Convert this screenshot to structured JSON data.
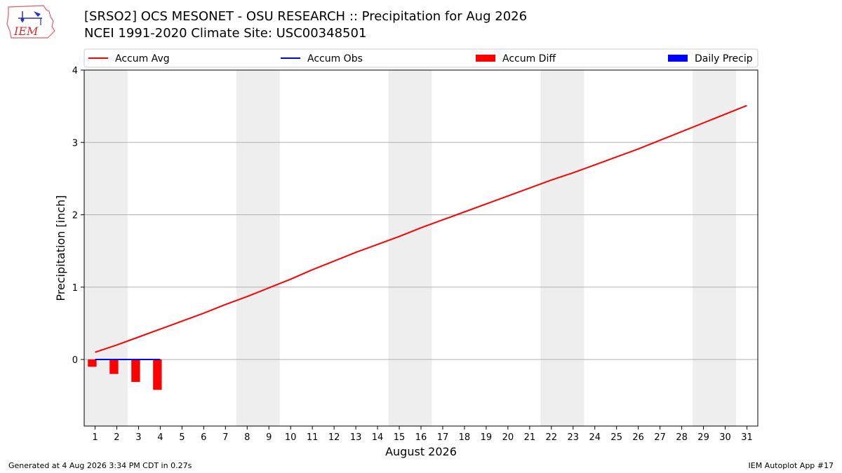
{
  "header": {
    "title_line1": "[SRSO2] OCS MESONET - OSU RESEARCH :: Precipitation for Aug 2026",
    "title_line2": "NCEI 1991-2020 Climate Site: USC00348501",
    "logo_text": "IEM"
  },
  "footer": {
    "left": "Generated at 4 Aug 2026 3:34 PM CDT in 0.27s",
    "right": "IEM Autoplot App #17"
  },
  "chart_data": {
    "type": "line",
    "xlabel": "August 2026",
    "ylabel": "Precipitation [inch]",
    "xlim": [
      0.5,
      31.5
    ],
    "ylim": [
      -0.92,
      4.0
    ],
    "x_ticks": [
      1,
      2,
      3,
      4,
      5,
      6,
      7,
      8,
      9,
      10,
      11,
      12,
      13,
      14,
      15,
      16,
      17,
      18,
      19,
      20,
      21,
      22,
      23,
      24,
      25,
      26,
      27,
      28,
      29,
      30,
      31
    ],
    "y_ticks": [
      0,
      1,
      2,
      3,
      4
    ],
    "grid": "horizontal",
    "weekend_shading": [
      [
        0.5,
        2.5
      ],
      [
        7.5,
        9.5
      ],
      [
        14.5,
        16.5
      ],
      [
        21.5,
        23.5
      ],
      [
        28.5,
        30.5
      ]
    ],
    "legend": {
      "placement": "top",
      "entries": [
        {
          "label": "Accum Avg",
          "kind": "line",
          "color": "#ff0000"
        },
        {
          "label": "Accum Obs",
          "kind": "line",
          "color": "#0000ff"
        },
        {
          "label": "Accum Diff",
          "kind": "bar",
          "color": "#ff0000"
        },
        {
          "label": "Daily Precip",
          "kind": "bar",
          "color": "#0000ff"
        }
      ]
    },
    "series": [
      {
        "name": "Accum Avg",
        "kind": "line",
        "color": "#ff0000",
        "x": [
          1,
          2,
          3,
          4,
          5,
          6,
          7,
          8,
          9,
          10,
          11,
          12,
          13,
          14,
          15,
          16,
          17,
          18,
          19,
          20,
          21,
          22,
          23,
          24,
          25,
          26,
          27,
          28,
          29,
          30,
          31
        ],
        "values": [
          0.1,
          0.2,
          0.31,
          0.42,
          0.53,
          0.64,
          0.76,
          0.87,
          0.99,
          1.11,
          1.24,
          1.36,
          1.48,
          1.59,
          1.7,
          1.82,
          1.93,
          2.04,
          2.15,
          2.26,
          2.37,
          2.48,
          2.58,
          2.69,
          2.8,
          2.91,
          3.03,
          3.15,
          3.27,
          3.39,
          3.51
        ]
      },
      {
        "name": "Accum Obs",
        "kind": "line",
        "color": "#0000ff",
        "x": [
          1,
          2,
          3,
          4
        ],
        "values": [
          0,
          0,
          0,
          0
        ]
      },
      {
        "name": "Accum Diff",
        "kind": "bar",
        "color": "#ff0000",
        "x": [
          1,
          2,
          3,
          4
        ],
        "values": [
          -0.1,
          -0.2,
          -0.31,
          -0.42
        ]
      },
      {
        "name": "Daily Precip",
        "kind": "bar",
        "color": "#0000ff",
        "x": [
          1,
          2,
          3,
          4
        ],
        "values": [
          0,
          0,
          0,
          0
        ]
      }
    ]
  }
}
